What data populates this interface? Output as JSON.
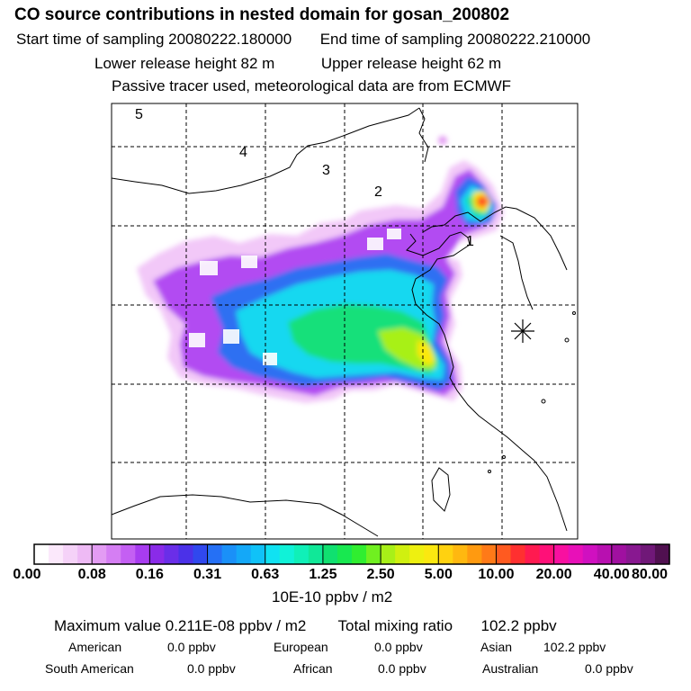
{
  "header": {
    "title": "CO  source contributions in nested domain for gosan_200802",
    "start_label": "Start time of sampling 20080222.180000",
    "end_label": "End time of sampling 20080222.210000",
    "lower_label": "Lower release height   82 m",
    "upper_label": "Upper release height   62 m",
    "note": "Passive tracer used, meteorological data are from ECMWF"
  },
  "chart_data": {
    "type": "heatmap",
    "title": "CO  source contributions in nested domain for gosan_200802",
    "region_labels": [
      "1",
      "2",
      "3",
      "4",
      "5"
    ],
    "colorbar": {
      "ticks": [
        "0.00",
        "0.08",
        "0.16",
        "0.31",
        "0.63",
        "1.25",
        "2.50",
        "5.00",
        "10.00",
        "20.00",
        "40.00",
        "80.00"
      ],
      "unit": "10E-10 ppbv / m2",
      "colors": [
        "#ffffff",
        "#fbe8fb",
        "#f5d2f8",
        "#eebaf5",
        "#e39cf3",
        "#d57ef3",
        "#c45ff3",
        "#a83cf0",
        "#8a2be8",
        "#6a2ee8",
        "#4b31e8",
        "#3048ee",
        "#2570f5",
        "#1a90f8",
        "#14a8f8",
        "#10c2f8",
        "#10e2f2",
        "#10f2d8",
        "#10f0b8",
        "#10e898",
        "#10e070",
        "#18e850",
        "#30ee30",
        "#70f020",
        "#a8f018",
        "#d0f010",
        "#eef010",
        "#fbe810",
        "#ffd210",
        "#ffb810",
        "#ff9a10",
        "#ff7a18",
        "#ff5a20",
        "#ff3030",
        "#ff1a50",
        "#ff1078",
        "#f810a0",
        "#e810b8",
        "#d010c0",
        "#b810b0",
        "#a010a0",
        "#881890",
        "#701878",
        "#501050"
      ]
    },
    "field": {
      "description": "CO source contribution footprint",
      "max_value_text": "0.211E-08 ppbv / m2"
    }
  },
  "summary": {
    "max_label": "Maximum value  0.211E-08 ppbv / m2",
    "total_label": "Total mixing ratio",
    "total_value": "102.2 ppbv"
  },
  "sources": [
    {
      "name": "American",
      "value": "0.0 ppbv"
    },
    {
      "name": "European",
      "value": "0.0 ppbv"
    },
    {
      "name": "Asian",
      "value": "102.2 ppbv"
    },
    {
      "name": "South American",
      "value": "0.0 ppbv"
    },
    {
      "name": "African",
      "value": "0.0 ppbv"
    },
    {
      "name": "Australian",
      "value": "0.0 ppbv"
    }
  ]
}
